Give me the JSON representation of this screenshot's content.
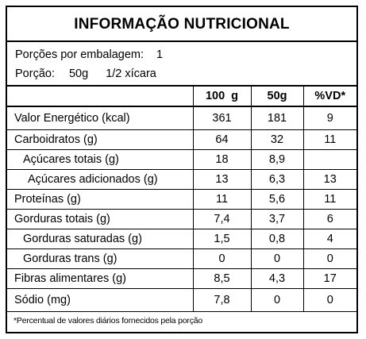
{
  "title": "INFORMAÇÃO NUTRICIONAL",
  "serving": {
    "portions_label": "Porções por embalagem:",
    "portions_value": "1",
    "portion_label": "Porção:",
    "portion_value": "50g",
    "portion_household": "1/2 xícara"
  },
  "columns": [
    "",
    "100  g",
    "50g",
    "%VD*"
  ],
  "rows": [
    {
      "name": "Valor Energético (kcal)",
      "indent": 0,
      "v100": "361",
      "v50": "181",
      "vd": "9"
    },
    {
      "name": "Carboidratos (g)",
      "indent": 0,
      "v100": "64",
      "v50": "32",
      "vd": "11"
    },
    {
      "name": "Açúcares totais (g)",
      "indent": 1,
      "v100": "18",
      "v50": "8,9",
      "vd": ""
    },
    {
      "name": "Açúcares adicionados (g)",
      "indent": 2,
      "v100": "13",
      "v50": "6,3",
      "vd": "13"
    },
    {
      "name": "Proteínas (g)",
      "indent": 0,
      "v100": "11",
      "v50": "5,6",
      "vd": "11"
    },
    {
      "name": "Gorduras totais (g)",
      "indent": 0,
      "v100": "7,4",
      "v50": "3,7",
      "vd": "6"
    },
    {
      "name": "Gorduras saturadas (g)",
      "indent": 1,
      "v100": "1,5",
      "v50": "0,8",
      "vd": "4"
    },
    {
      "name": "Gorduras trans (g)",
      "indent": 1,
      "v100": "0",
      "v50": "0",
      "vd": "0"
    },
    {
      "name": "Fibras alimentares (g)",
      "indent": 0,
      "v100": "8,5",
      "v50": "4,3",
      "vd": "17"
    },
    {
      "name": "Sódio (mg)",
      "indent": 0,
      "v100": "7,8",
      "v50": "0",
      "vd": "0"
    }
  ],
  "footnote": "*Percentual de valores diários fornecidos pela porção"
}
